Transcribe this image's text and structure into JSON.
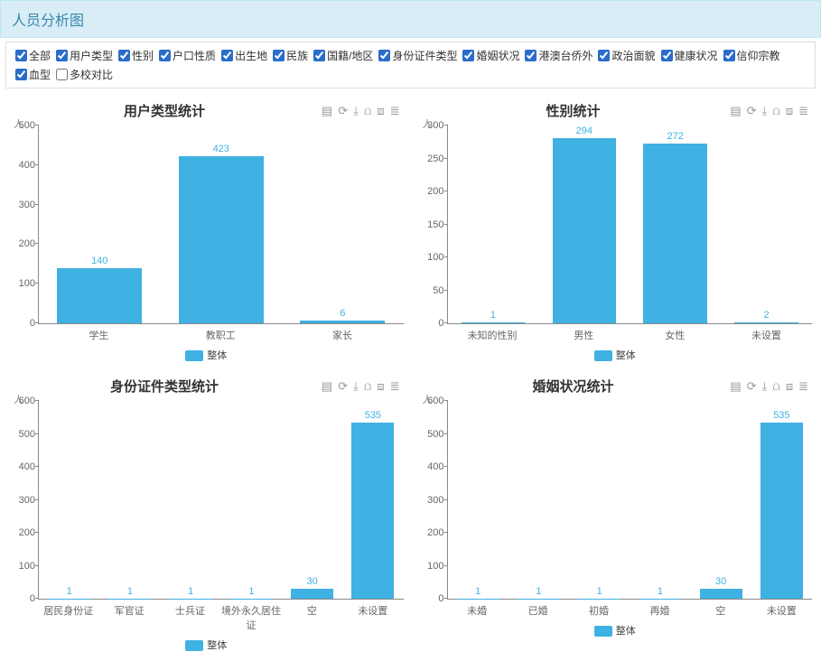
{
  "header": {
    "title": "人员分析图"
  },
  "filters": [
    {
      "label": "全部",
      "checked": true
    },
    {
      "label": "用户类型",
      "checked": true
    },
    {
      "label": "性别",
      "checked": true
    },
    {
      "label": "户口性质",
      "checked": true
    },
    {
      "label": "出生地",
      "checked": true
    },
    {
      "label": "民族",
      "checked": true
    },
    {
      "label": "国籍/地区",
      "checked": true
    },
    {
      "label": "身份证件类型",
      "checked": true
    },
    {
      "label": "婚姻状况",
      "checked": true
    },
    {
      "label": "港澳台侨外",
      "checked": true
    },
    {
      "label": "政治面貌",
      "checked": true
    },
    {
      "label": "健康状况",
      "checked": true
    },
    {
      "label": "信仰宗教",
      "checked": true
    },
    {
      "label": "血型",
      "checked": true
    },
    {
      "label": "多校对比",
      "checked": false
    }
  ],
  "toolbox_icons": [
    "data-view-icon",
    "refresh-icon",
    "download-icon",
    "line-icon",
    "bar-icon",
    "stack-icon"
  ],
  "toolbox_glyphs": [
    "▤",
    "⟳",
    "⤓",
    "⩍",
    "⧈",
    "≣"
  ],
  "charts": [
    {
      "title": "用户类型统计",
      "type": "bar",
      "ylabel": "人",
      "ylim": [
        0,
        500
      ],
      "ytick_step": 100,
      "categories": [
        "学生",
        "教职工",
        "家长"
      ],
      "values": [
        140,
        423,
        6
      ],
      "bar_color": "#3fb1e3",
      "label_color": "#3fb1e3",
      "axis_color": "#888888",
      "tick_font": 11,
      "title_font": 15,
      "background_color": "#ffffff",
      "legend_label": "整体"
    },
    {
      "title": "性别统计",
      "type": "bar",
      "ylabel": "人",
      "ylim": [
        0,
        300
      ],
      "ytick_step": 50,
      "categories": [
        "未知的性别",
        "男性",
        "女性",
        "未设置"
      ],
      "values": [
        1,
        294,
        272,
        2
      ],
      "bar_color": "#3fb1e3",
      "label_color": "#3fb1e3",
      "axis_color": "#888888",
      "tick_font": 11,
      "title_font": 15,
      "background_color": "#ffffff",
      "legend_label": "整体"
    },
    {
      "title": "身份证件类型统计",
      "type": "bar",
      "ylabel": "人",
      "ylim": [
        0,
        600
      ],
      "ytick_step": 100,
      "categories": [
        "居民身份证",
        "军官证",
        "士兵证",
        "境外永久居住证",
        "空",
        "未设置"
      ],
      "values": [
        1,
        1,
        1,
        1,
        30,
        535
      ],
      "bar_color": "#3fb1e3",
      "label_color": "#3fb1e3",
      "axis_color": "#888888",
      "tick_font": 11,
      "title_font": 15,
      "background_color": "#ffffff",
      "legend_label": "整体"
    },
    {
      "title": "婚姻状况统计",
      "type": "bar",
      "ylabel": "人",
      "ylim": [
        0,
        600
      ],
      "ytick_step": 100,
      "categories": [
        "未婚",
        "已婚",
        "初婚",
        "再婚",
        "空",
        "未设置"
      ],
      "values": [
        1,
        1,
        1,
        1,
        30,
        535
      ],
      "bar_color": "#3fb1e3",
      "label_color": "#3fb1e3",
      "axis_color": "#888888",
      "tick_font": 11,
      "title_font": 15,
      "background_color": "#ffffff",
      "legend_label": "整体"
    }
  ]
}
